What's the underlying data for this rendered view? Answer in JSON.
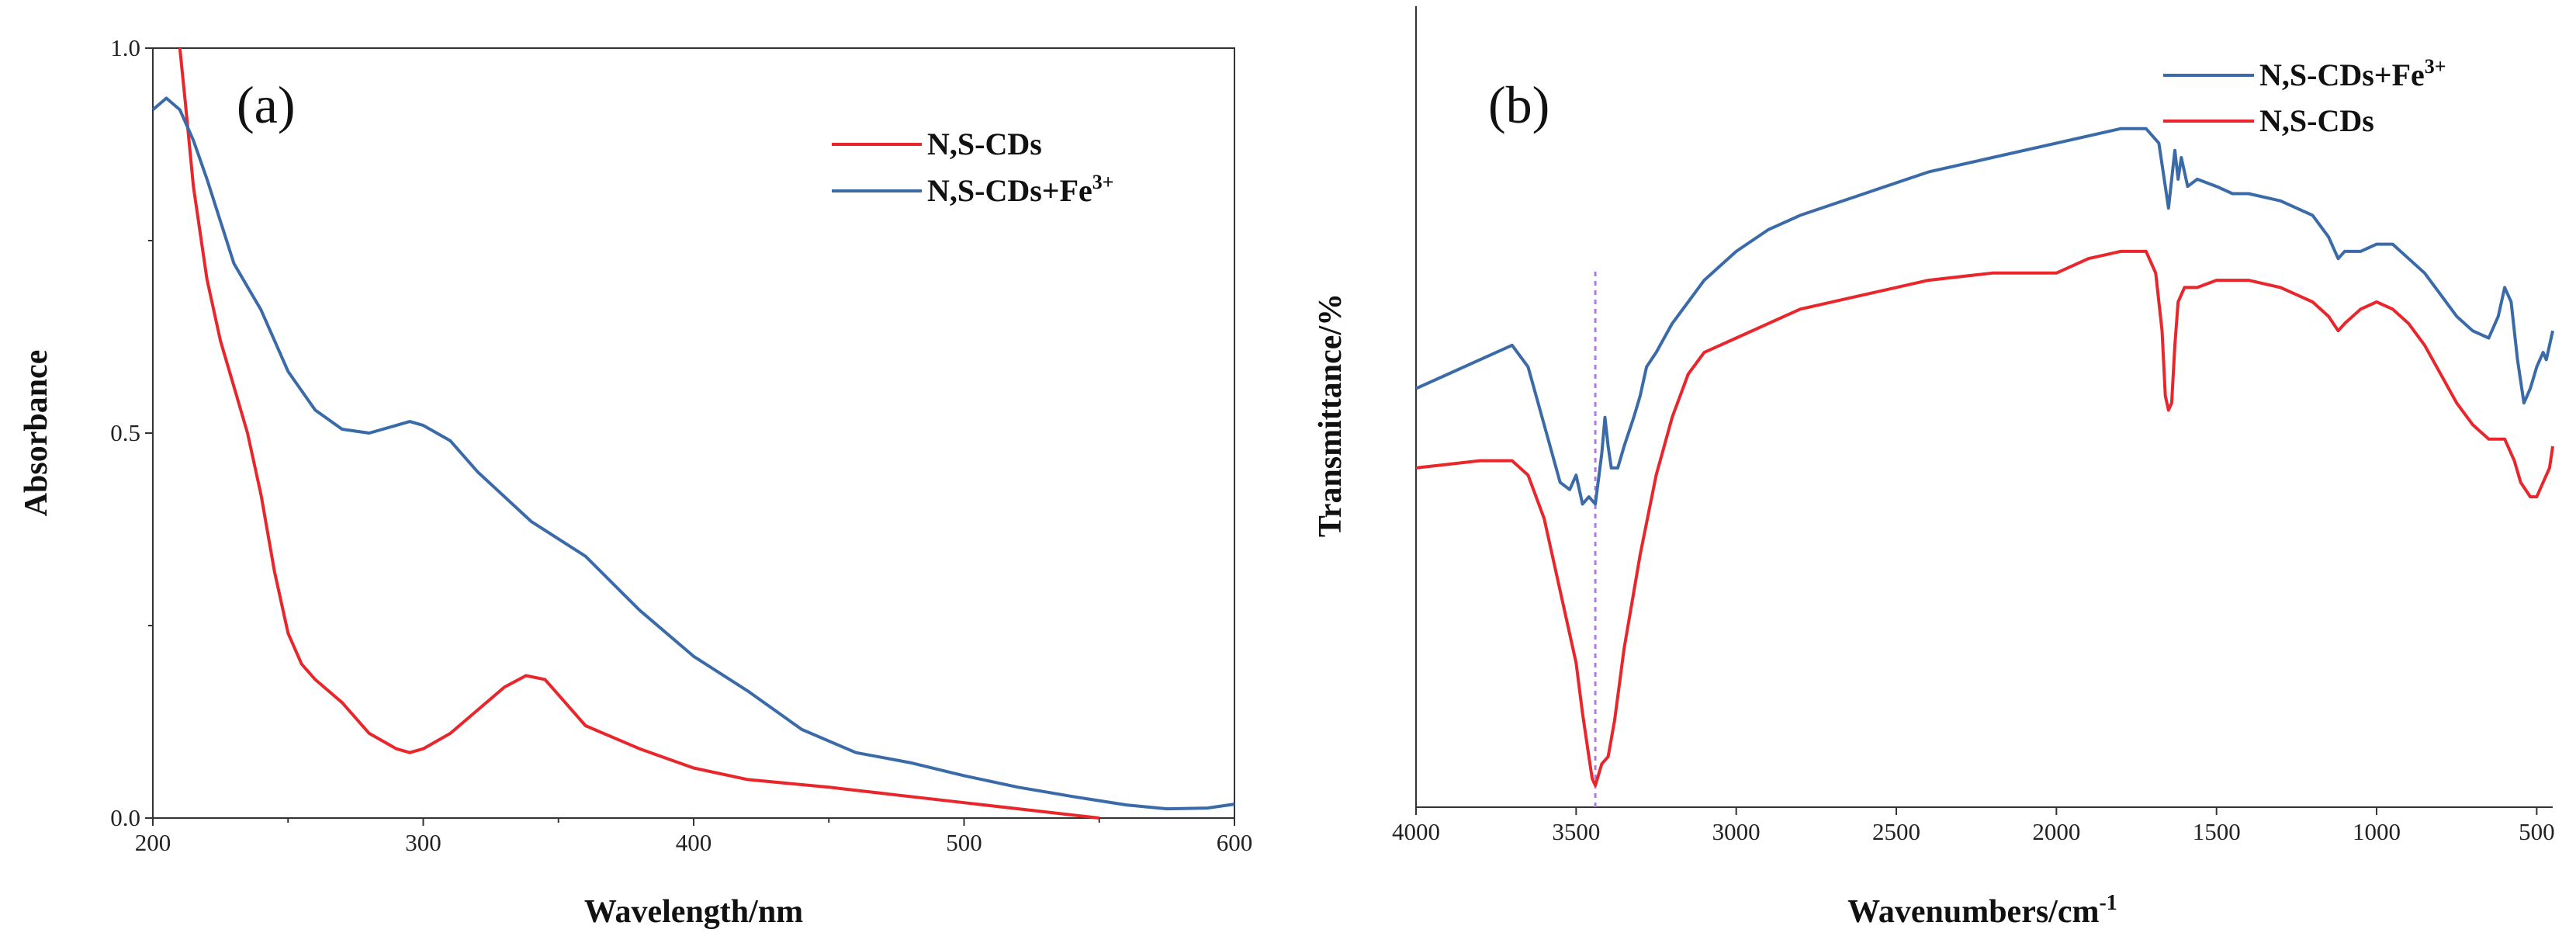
{
  "chart_data": [
    {
      "type": "line",
      "panel_label": "(a)",
      "xlabel": "Wavelength/nm",
      "ylabel": "Absorbance",
      "xlim": [
        200,
        600
      ],
      "ylim": [
        0.0,
        1.0
      ],
      "xticks": [
        200,
        300,
        400,
        500,
        600
      ],
      "xtick_labels": [
        "200",
        "300",
        "400",
        "500",
        "600"
      ],
      "yticks": [
        0.0,
        0.5,
        1.0
      ],
      "ytick_labels": [
        "0.0",
        "0.5",
        "1.0"
      ],
      "legend_position": "top-right",
      "series": [
        {
          "name": "N,S-CDs",
          "legend_text": "N,S-CDs",
          "color": "#e8262b",
          "x": [
            210,
            212,
            215,
            220,
            225,
            230,
            235,
            240,
            245,
            250,
            255,
            260,
            270,
            280,
            290,
            295,
            300,
            310,
            320,
            330,
            338,
            345,
            350,
            360,
            380,
            400,
            420,
            450,
            500,
            550
          ],
          "y": [
            1.0,
            0.93,
            0.82,
            0.7,
            0.62,
            0.56,
            0.5,
            0.42,
            0.32,
            0.24,
            0.2,
            0.18,
            0.15,
            0.11,
            0.09,
            0.085,
            0.09,
            0.11,
            0.14,
            0.17,
            0.185,
            0.18,
            0.16,
            0.12,
            0.09,
            0.065,
            0.05,
            0.04,
            0.02,
            0.0
          ]
        },
        {
          "name": "N,S-CDs+Fe3+",
          "legend_text": "N,S-CDs+Fe",
          "legend_sup": "3+",
          "color": "#3a6ba8",
          "x": [
            200,
            205,
            210,
            215,
            220,
            230,
            240,
            250,
            260,
            270,
            280,
            290,
            295,
            300,
            310,
            320,
            340,
            360,
            380,
            400,
            420,
            440,
            460,
            480,
            500,
            520,
            540,
            560,
            575,
            590,
            600
          ],
          "y": [
            0.92,
            0.935,
            0.92,
            0.88,
            0.83,
            0.72,
            0.66,
            0.58,
            0.53,
            0.505,
            0.5,
            0.51,
            0.515,
            0.51,
            0.49,
            0.45,
            0.385,
            0.34,
            0.27,
            0.21,
            0.165,
            0.115,
            0.085,
            0.072,
            0.055,
            0.04,
            0.028,
            0.017,
            0.012,
            0.013,
            0.018
          ]
        }
      ]
    },
    {
      "type": "line",
      "panel_label": "(b)",
      "xlabel": "Wavenumbers/cm",
      "xlabel_sup": "-1",
      "ylabel": "Transmittance/%",
      "xlim": [
        4000,
        450
      ],
      "ylim": [
        0,
        100
      ],
      "xticks": [
        4000,
        3500,
        3000,
        2500,
        2000,
        1500,
        1000,
        500
      ],
      "xtick_labels": [
        "4000",
        "3500",
        "3000",
        "2500",
        "2000",
        "1500",
        "1000",
        "500"
      ],
      "yticks": [],
      "reference_line_x": 3440,
      "legend_position": "top-right",
      "series": [
        {
          "name": "N,S-CDs+Fe3+",
          "legend_text": "N,S-CDs+Fe",
          "legend_sup": "3+",
          "color": "#3a6ba8",
          "x": [
            4000,
            3900,
            3800,
            3700,
            3650,
            3600,
            3550,
            3520,
            3500,
            3480,
            3460,
            3440,
            3420,
            3410,
            3400,
            3390,
            3370,
            3350,
            3320,
            3300,
            3280,
            3250,
            3200,
            3150,
            3100,
            3050,
            3000,
            2900,
            2800,
            2600,
            2400,
            2200,
            2000,
            1800,
            1720,
            1680,
            1660,
            1650,
            1640,
            1630,
            1620,
            1610,
            1590,
            1560,
            1500,
            1450,
            1400,
            1300,
            1200,
            1150,
            1120,
            1100,
            1050,
            1000,
            950,
            900,
            850,
            800,
            750,
            700,
            650,
            620,
            600,
            580,
            560,
            540,
            520,
            500,
            480,
            470,
            460,
            450
          ],
          "y": [
            58,
            60,
            62,
            64,
            61,
            53,
            45,
            44,
            46,
            42,
            43,
            42,
            49,
            54,
            50,
            47,
            47,
            50,
            54,
            57,
            61,
            63,
            67,
            70,
            73,
            75,
            77,
            80,
            82,
            85,
            88,
            90,
            92,
            94,
            94,
            92,
            86,
            83,
            87,
            91,
            87,
            90,
            86,
            87,
            86,
            85,
            85,
            84,
            82,
            79,
            76,
            77,
            77,
            78,
            78,
            76,
            74,
            71,
            68,
            66,
            65,
            68,
            72,
            70,
            62,
            56,
            58,
            61,
            63,
            62,
            64,
            66
          ]
        },
        {
          "name": "N,S-CDs",
          "legend_text": "N,S-CDs",
          "color": "#e8262b",
          "x": [
            4000,
            3800,
            3700,
            3650,
            3600,
            3550,
            3500,
            3480,
            3460,
            3450,
            3440,
            3420,
            3400,
            3380,
            3350,
            3300,
            3250,
            3200,
            3150,
            3100,
            3050,
            3000,
            2900,
            2800,
            2600,
            2400,
            2200,
            2000,
            1900,
            1800,
            1720,
            1690,
            1670,
            1660,
            1650,
            1640,
            1630,
            1620,
            1600,
            1560,
            1500,
            1450,
            1400,
            1300,
            1200,
            1150,
            1120,
            1100,
            1050,
            1000,
            950,
            900,
            850,
            800,
            750,
            700,
            650,
            600,
            570,
            550,
            520,
            500,
            480,
            460,
            450
          ],
          "y": [
            47,
            48,
            48,
            46,
            40,
            30,
            20,
            13,
            7,
            4,
            3,
            6,
            7,
            12,
            22,
            35,
            46,
            54,
            60,
            63,
            64,
            65,
            67,
            69,
            71,
            73,
            74,
            74,
            76,
            77,
            77,
            74,
            66,
            57,
            55,
            56,
            64,
            70,
            72,
            72,
            73,
            73,
            73,
            72,
            70,
            68,
            66,
            67,
            69,
            70,
            69,
            67,
            64,
            60,
            56,
            53,
            51,
            51,
            48,
            45,
            43,
            43,
            45,
            47,
            50
          ]
        }
      ]
    }
  ]
}
